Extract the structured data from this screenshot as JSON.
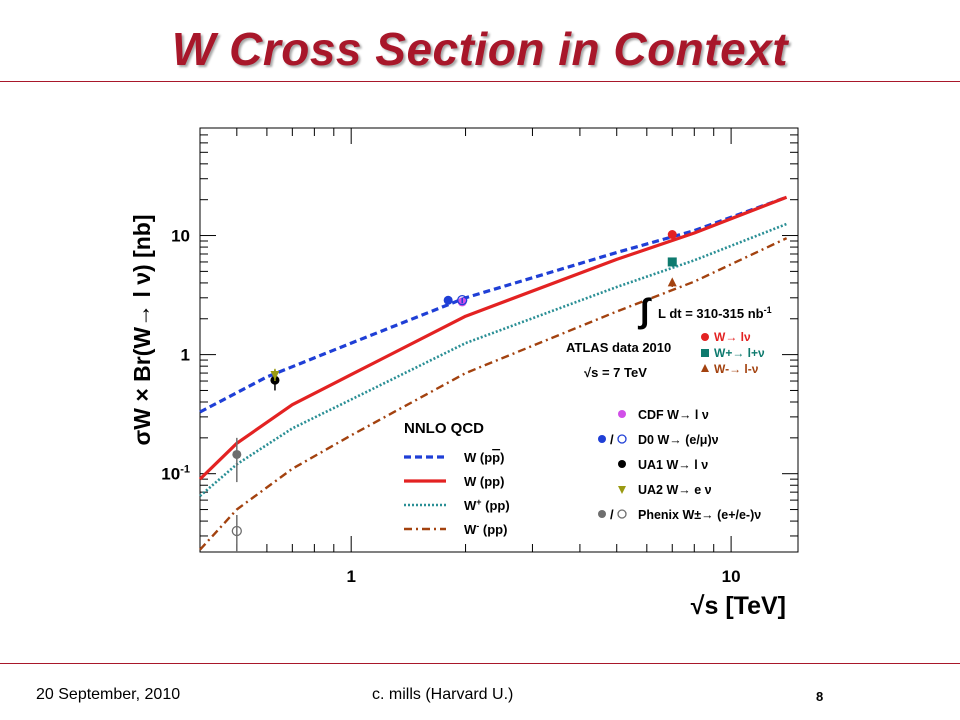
{
  "slide": {
    "title": "W Cross Section in Context",
    "footer_date": "20 September, 2010",
    "footer_author": "c. mills (Harvard U.)",
    "page_number": "8"
  },
  "colors": {
    "title": "#a8172a",
    "w_ppbar": "#1f3fd6",
    "w_pp": "#e32222",
    "wplus_pp": "#2a8f95",
    "wminus_pp": "#a3420f",
    "cdf": "#d14fe8",
    "d0": "#1f3fd6",
    "ua1": "#000000",
    "ua2": "#9a9a12",
    "phenix": "#6e6e6e",
    "atlas_w": "#e32222",
    "atlas_wplus": "#0e7a6e",
    "atlas_wminus": "#a3420f"
  },
  "chart_data": {
    "type": "line",
    "xlabel": "√s [TeV]",
    "ylabel": "σW × Br(W→ l ν) [nb]",
    "x_scale": "log",
    "y_scale": "log",
    "xlim": [
      0.4,
      15
    ],
    "ylim": [
      0.022,
      80
    ],
    "xticks": [
      {
        "value": 1,
        "label": "1"
      },
      {
        "value": 10,
        "label": "10"
      }
    ],
    "yticks": [
      {
        "value": 0.1,
        "label": "10",
        "sup": "-1"
      },
      {
        "value": 1,
        "label": "1",
        "sup": ""
      },
      {
        "value": 10,
        "label": "10",
        "sup": ""
      }
    ],
    "grid": false,
    "nnlo_legend_title": "NNLO QCD",
    "series": [
      {
        "name": "W (pp̄)",
        "label_main": "W (p",
        "label_bar": "p",
        "label_end": ")",
        "style": "dashed",
        "x": [
          0.4,
          0.6,
          1,
          2,
          5,
          8,
          14
        ],
        "y": [
          0.33,
          0.65,
          1.25,
          3.0,
          7.2,
          11.0,
          21.0
        ]
      },
      {
        "name": "W (pp)",
        "label_main": "W (pp)",
        "style": "solid",
        "x": [
          0.4,
          0.5,
          0.7,
          1,
          2,
          5,
          8,
          14
        ],
        "y": [
          0.09,
          0.18,
          0.38,
          0.68,
          2.1,
          6.3,
          10.5,
          21.0
        ]
      },
      {
        "name": "W+ (pp)",
        "label_main": "W",
        "label_sup": "+",
        "label_end": " (pp)",
        "style": "dotted",
        "x": [
          0.4,
          0.5,
          0.7,
          1,
          2,
          5,
          8,
          14
        ],
        "y": [
          0.065,
          0.12,
          0.24,
          0.42,
          1.25,
          3.7,
          6.2,
          12.5
        ]
      },
      {
        "name": "W- (pp)",
        "label_main": "W",
        "label_sup": "-",
        "label_end": " (pp)",
        "style": "dashdot",
        "x": [
          0.4,
          0.5,
          0.7,
          1,
          2,
          5,
          8,
          14
        ],
        "y": [
          0.023,
          0.05,
          0.11,
          0.21,
          0.7,
          2.3,
          4.1,
          9.5
        ]
      }
    ],
    "points": [
      {
        "group": "cdf",
        "x": 1.96,
        "y": 2.77,
        "marker": "circle",
        "color": "#d14fe8",
        "err": [
          2.6,
          3.0
        ]
      },
      {
        "group": "d0",
        "x": 1.8,
        "y": 2.86,
        "marker": "circle",
        "color": "#1f3fd6",
        "err": [
          2.7,
          3.0
        ]
      },
      {
        "group": "d0",
        "x": 1.96,
        "y": 2.87,
        "marker": "open-circle",
        "color": "#1f3fd6",
        "err": [
          2.7,
          3.0
        ]
      },
      {
        "group": "ua1",
        "x": 0.63,
        "y": 0.61,
        "marker": "circle",
        "color": "#000000",
        "err": [
          0.5,
          0.74
        ]
      },
      {
        "group": "ua2",
        "x": 0.63,
        "y": 0.68,
        "marker": "triangle-down",
        "color": "#9a9a12",
        "err": [
          0.6,
          0.76
        ]
      },
      {
        "group": "phenix",
        "x": 0.5,
        "y": 0.145,
        "marker": "circle",
        "color": "#6e6e6e",
        "err": [
          0.085,
          0.2
        ]
      },
      {
        "group": "phenix",
        "x": 0.5,
        "y": 0.033,
        "marker": "open-circle",
        "color": "#6e6e6e",
        "err": [
          0.022,
          0.045
        ]
      },
      {
        "group": "atlas_w",
        "x": 7,
        "y": 10.2,
        "marker": "circle",
        "color": "#e32222",
        "err": [
          9.4,
          11.0
        ]
      },
      {
        "group": "atlas_wplus",
        "x": 7,
        "y": 6.0,
        "marker": "square",
        "color": "#0e7a6e",
        "err": [
          5.5,
          6.5
        ]
      },
      {
        "group": "atlas_wminus",
        "x": 7,
        "y": 4.0,
        "marker": "triangle-up",
        "color": "#a3420f",
        "err": [
          3.7,
          4.3
        ]
      }
    ],
    "atlas_box": {
      "lumi": "L dt = 310-315 nb",
      "lumi_sup": "-1",
      "data_label": "ATLAS data 2010",
      "energy": "s = 7 TeV",
      "entries": [
        {
          "label": "W→ lν",
          "marker": "circle",
          "color": "#e32222"
        },
        {
          "label": "W+→ l+ν",
          "marker": "square",
          "color": "#0e7a6e"
        },
        {
          "label": "W-→ l-ν",
          "marker": "triangle-up",
          "color": "#a3420f"
        }
      ]
    },
    "exp_legend": [
      {
        "marker": "circle",
        "color": "#d14fe8",
        "label": "CDF W→ l ν"
      },
      {
        "marker": "circle+open",
        "color": "#1f3fd6",
        "label": "D0 W→ (e/μ)ν"
      },
      {
        "marker": "circle",
        "color": "#000000",
        "label": "UA1 W→ l ν"
      },
      {
        "marker": "triangle-down",
        "color": "#9a9a12",
        "label": "UA2 W→ e ν"
      },
      {
        "marker": "circle+open",
        "color": "#6e6e6e",
        "label": "Phenix W±→ (e+/e-)ν"
      }
    ]
  }
}
